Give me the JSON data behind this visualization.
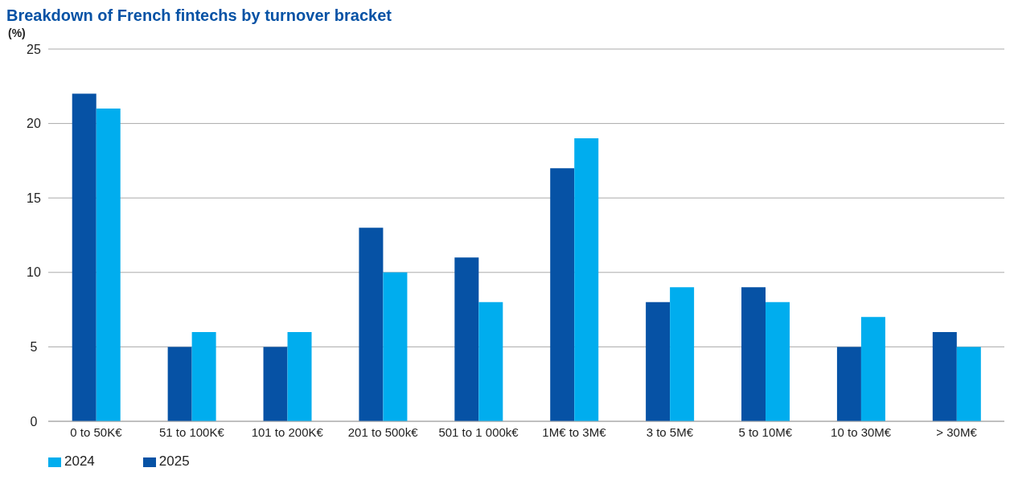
{
  "chart_data": {
    "type": "bar",
    "title": "Breakdown of French fintechs by turnover bracket",
    "ylabel": "(%)",
    "categories": [
      "0 to 50K€",
      "51 to 100K€",
      "101 to 200K€",
      "201 to 500k€",
      "501 to 1 000k€",
      "1M€ to 3M€",
      "3 to 5M€",
      "5 to 10M€",
      "10 to 30M€",
      "> 30M€"
    ],
    "series": [
      {
        "name": "2025",
        "color": "#0652a5",
        "values": [
          22,
          5,
          5,
          13,
          11,
          17,
          8,
          9,
          5,
          6
        ]
      },
      {
        "name": "2024",
        "color": "#00adee",
        "values": [
          21,
          6,
          6,
          10,
          8,
          19,
          9,
          8,
          7,
          5
        ]
      }
    ],
    "ylim": [
      0,
      25
    ],
    "yticks": [
      0,
      5,
      10,
      15,
      20,
      25
    ],
    "grid": "y",
    "legend": "bottom left"
  }
}
